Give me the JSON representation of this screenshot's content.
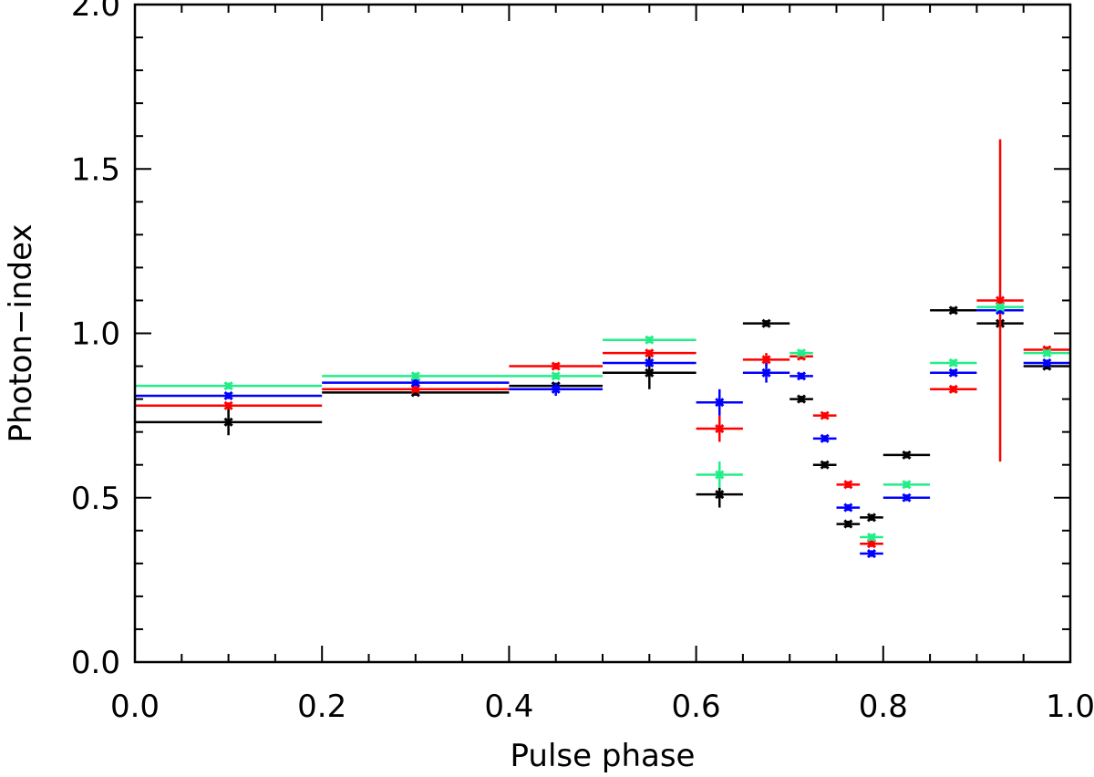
{
  "chart_data": {
    "type": "scatter",
    "title": "",
    "xlabel": "Pulse phase",
    "ylabel": "Photon−index",
    "xlim": [
      0.0,
      1.0
    ],
    "ylim": [
      0.0,
      2.0
    ],
    "x_ticks": [
      "0.0",
      "0.2",
      "0.4",
      "0.6",
      "0.8",
      "1.0"
    ],
    "y_ticks": [
      "0.0",
      "0.5",
      "1.0",
      "1.5",
      "2.0"
    ],
    "grid": false,
    "legend": "none",
    "series": [
      {
        "color": "#000000",
        "points": [
          {
            "x": 0.1,
            "xlo": 0.0,
            "xhi": 0.2,
            "y": 0.73,
            "err": 0.04
          },
          {
            "x": 0.3,
            "xlo": 0.2,
            "xhi": 0.4,
            "y": 0.82,
            "err": 0.01
          },
          {
            "x": 0.45,
            "xlo": 0.4,
            "xhi": 0.5,
            "y": 0.84,
            "err": 0.01
          },
          {
            "x": 0.55,
            "xlo": 0.5,
            "xhi": 0.6,
            "y": 0.88,
            "err": 0.05
          },
          {
            "x": 0.625,
            "xlo": 0.6,
            "xhi": 0.65,
            "y": 0.51,
            "err": 0.04
          },
          {
            "x": 0.675,
            "xlo": 0.65,
            "xhi": 0.7,
            "y": 1.03,
            "err": 0.01
          },
          {
            "x": 0.7125,
            "xlo": 0.7,
            "xhi": 0.725,
            "y": 0.8,
            "err": 0.01
          },
          {
            "x": 0.7375,
            "xlo": 0.725,
            "xhi": 0.75,
            "y": 0.6,
            "err": 0.01
          },
          {
            "x": 0.7625,
            "xlo": 0.75,
            "xhi": 0.775,
            "y": 0.42,
            "err": 0.01
          },
          {
            "x": 0.7875,
            "xlo": 0.775,
            "xhi": 0.8,
            "y": 0.44,
            "err": 0.01
          },
          {
            "x": 0.825,
            "xlo": 0.8,
            "xhi": 0.85,
            "y": 0.63,
            "err": 0.01
          },
          {
            "x": 0.875,
            "xlo": 0.85,
            "xhi": 0.9,
            "y": 1.07,
            "err": 0.01
          },
          {
            "x": 0.925,
            "xlo": 0.9,
            "xhi": 0.95,
            "y": 1.03,
            "err": 0.01
          },
          {
            "x": 0.975,
            "xlo": 0.95,
            "xhi": 1.0,
            "y": 0.9,
            "err": 0.01
          }
        ]
      },
      {
        "color": "#ff0000",
        "points": [
          {
            "x": 0.1,
            "xlo": 0.0,
            "xhi": 0.2,
            "y": 0.78,
            "err": 0.01
          },
          {
            "x": 0.3,
            "xlo": 0.2,
            "xhi": 0.4,
            "y": 0.83,
            "err": 0.01
          },
          {
            "x": 0.45,
            "xlo": 0.4,
            "xhi": 0.5,
            "y": 0.9,
            "err": 0.01
          },
          {
            "x": 0.55,
            "xlo": 0.5,
            "xhi": 0.6,
            "y": 0.94,
            "err": 0.01
          },
          {
            "x": 0.625,
            "xlo": 0.6,
            "xhi": 0.65,
            "y": 0.71,
            "err": 0.04
          },
          {
            "x": 0.675,
            "xlo": 0.65,
            "xhi": 0.7,
            "y": 0.92,
            "err": 0.02
          },
          {
            "x": 0.7125,
            "xlo": 0.7,
            "xhi": 0.725,
            "y": 0.93,
            "err": 0.01
          },
          {
            "x": 0.7375,
            "xlo": 0.725,
            "xhi": 0.75,
            "y": 0.75,
            "err": 0.01
          },
          {
            "x": 0.7625,
            "xlo": 0.75,
            "xhi": 0.775,
            "y": 0.54,
            "err": 0.01
          },
          {
            "x": 0.7875,
            "xlo": 0.775,
            "xhi": 0.8,
            "y": 0.36,
            "err": 0.01
          },
          {
            "x": 0.875,
            "xlo": 0.85,
            "xhi": 0.9,
            "y": 0.83,
            "err": 0.01
          },
          {
            "x": 0.925,
            "xlo": 0.9,
            "xhi": 0.95,
            "y": 1.1,
            "err": 0.49
          },
          {
            "x": 0.975,
            "xlo": 0.95,
            "xhi": 1.0,
            "y": 0.95,
            "err": 0.01
          }
        ]
      },
      {
        "color": "#0000ff",
        "points": [
          {
            "x": 0.1,
            "xlo": 0.0,
            "xhi": 0.2,
            "y": 0.81,
            "err": 0.01
          },
          {
            "x": 0.3,
            "xlo": 0.2,
            "xhi": 0.4,
            "y": 0.85,
            "err": 0.01
          },
          {
            "x": 0.45,
            "xlo": 0.4,
            "xhi": 0.5,
            "y": 0.83,
            "err": 0.02
          },
          {
            "x": 0.55,
            "xlo": 0.5,
            "xhi": 0.6,
            "y": 0.91,
            "err": 0.01
          },
          {
            "x": 0.625,
            "xlo": 0.6,
            "xhi": 0.65,
            "y": 0.79,
            "err": 0.04
          },
          {
            "x": 0.675,
            "xlo": 0.65,
            "xhi": 0.7,
            "y": 0.88,
            "err": 0.03
          },
          {
            "x": 0.7125,
            "xlo": 0.7,
            "xhi": 0.725,
            "y": 0.87,
            "err": 0.01
          },
          {
            "x": 0.7375,
            "xlo": 0.725,
            "xhi": 0.75,
            "y": 0.68,
            "err": 0.01
          },
          {
            "x": 0.7625,
            "xlo": 0.75,
            "xhi": 0.775,
            "y": 0.47,
            "err": 0.01
          },
          {
            "x": 0.7875,
            "xlo": 0.775,
            "xhi": 0.8,
            "y": 0.33,
            "err": 0.01
          },
          {
            "x": 0.825,
            "xlo": 0.8,
            "xhi": 0.85,
            "y": 0.5,
            "err": 0.01
          },
          {
            "x": 0.875,
            "xlo": 0.85,
            "xhi": 0.9,
            "y": 0.88,
            "err": 0.01
          },
          {
            "x": 0.925,
            "xlo": 0.9,
            "xhi": 0.95,
            "y": 1.07,
            "err": 0.01
          },
          {
            "x": 0.975,
            "xlo": 0.95,
            "xhi": 1.0,
            "y": 0.91,
            "err": 0.01
          }
        ]
      },
      {
        "color": "#22ee88",
        "points": [
          {
            "x": 0.1,
            "xlo": 0.0,
            "xhi": 0.2,
            "y": 0.84,
            "err": 0.01
          },
          {
            "x": 0.3,
            "xlo": 0.2,
            "xhi": 0.4,
            "y": 0.87,
            "err": 0.01
          },
          {
            "x": 0.45,
            "xlo": 0.4,
            "xhi": 0.5,
            "y": 0.87,
            "err": 0.01
          },
          {
            "x": 0.55,
            "xlo": 0.5,
            "xhi": 0.6,
            "y": 0.98,
            "err": 0.01
          },
          {
            "x": 0.625,
            "xlo": 0.6,
            "xhi": 0.65,
            "y": 0.57,
            "err": 0.04
          },
          {
            "x": 0.7125,
            "xlo": 0.7,
            "xhi": 0.725,
            "y": 0.94,
            "err": 0.01
          },
          {
            "x": 0.7875,
            "xlo": 0.775,
            "xhi": 0.8,
            "y": 0.38,
            "err": 0.01
          },
          {
            "x": 0.825,
            "xlo": 0.8,
            "xhi": 0.85,
            "y": 0.54,
            "err": 0.01
          },
          {
            "x": 0.875,
            "xlo": 0.85,
            "xhi": 0.9,
            "y": 0.91,
            "err": 0.01
          },
          {
            "x": 0.925,
            "xlo": 0.9,
            "xhi": 0.95,
            "y": 1.08,
            "err": 0.01
          },
          {
            "x": 0.975,
            "xlo": 0.95,
            "xhi": 1.0,
            "y": 0.94,
            "err": 0.01
          }
        ]
      }
    ]
  }
}
